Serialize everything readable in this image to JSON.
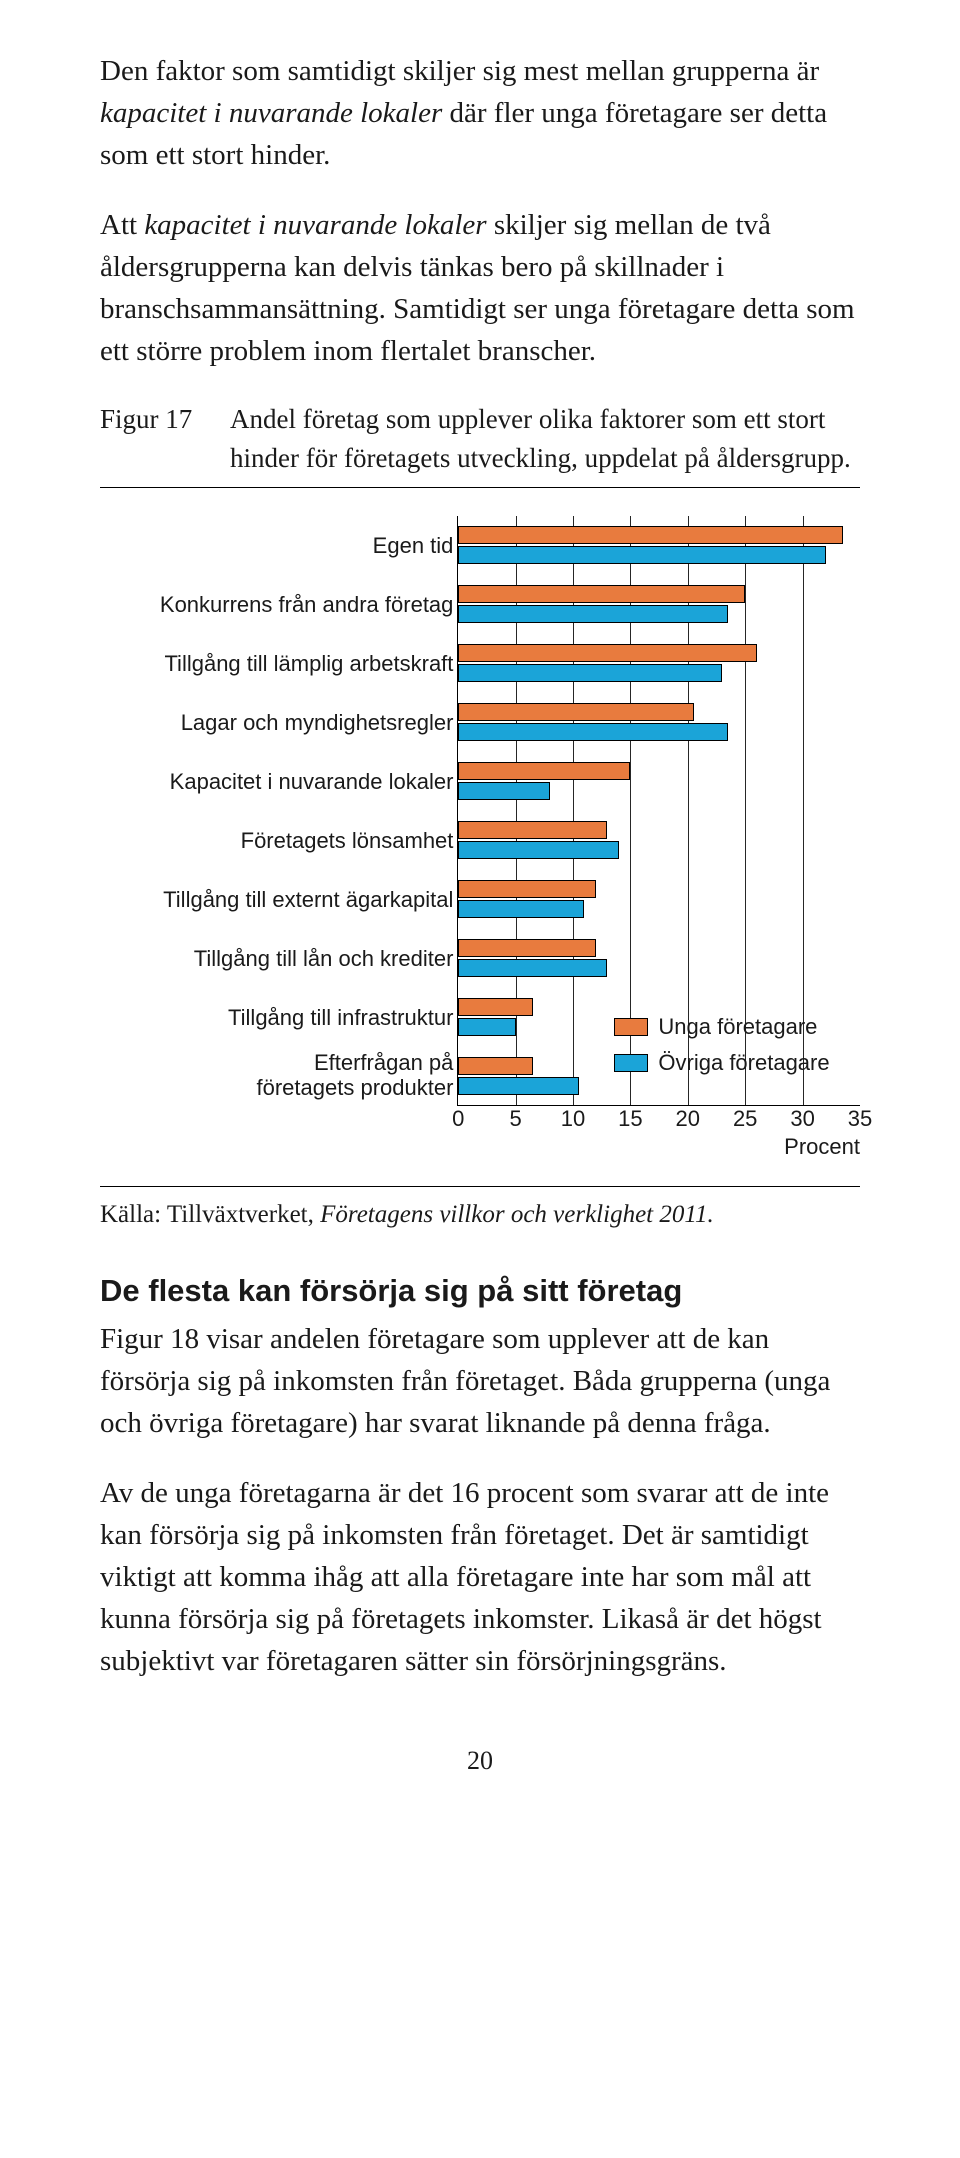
{
  "p1_a": "Den faktor som samtidigt skiljer sig mest mellan grupperna är ",
  "p1_b": "kapacitet i nuvarande lokaler",
  "p1_c": " där fler unga företagare ser detta som ett stort hinder.",
  "p2_a": "Att ",
  "p2_b": "kapacitet i nuvarande lokaler",
  "p2_c": " skiljer sig mellan de två åldersgrupperna kan delvis tänkas bero på skillnader i branschsammansättning. Samtidigt ser unga företagare detta som ett större problem inom flertalet branscher.",
  "fig_no": "Figur 17",
  "fig_desc": "Andel företag som upplever olika faktorer som ett stort hinder för företagets utveckling, uppdelat på åldersgrupp.",
  "chart": {
    "type": "grouped-horizontal-bar",
    "xlim": [
      0,
      35
    ],
    "xtick_step": 5,
    "xticks": [
      0,
      5,
      10,
      15,
      20,
      25,
      30,
      35
    ],
    "axis_unit": "Procent",
    "background_color": "#ffffff",
    "grid_color": "#000000",
    "bar_border": "#000000",
    "label_fontsize": 22,
    "categories": [
      {
        "label": "Egen tid",
        "unga": 33.5,
        "ovriga": 32.0
      },
      {
        "label": "Konkurrens från andra företag",
        "unga": 25.0,
        "ovriga": 23.5
      },
      {
        "label": "Tillgång till lämplig arbetskraft",
        "unga": 26.0,
        "ovriga": 23.0
      },
      {
        "label": "Lagar och myndighetsregler",
        "unga": 20.5,
        "ovriga": 23.5
      },
      {
        "label": "Kapacitet i nuvarande lokaler",
        "unga": 15.0,
        "ovriga": 8.0
      },
      {
        "label": "Företagets lönsamhet",
        "unga": 13.0,
        "ovriga": 14.0
      },
      {
        "label": "Tillgång till externt ägarkapital",
        "unga": 12.0,
        "ovriga": 11.0
      },
      {
        "label": "Tillgång till lån och krediter",
        "unga": 12.0,
        "ovriga": 13.0
      },
      {
        "label": "Tillgång till infrastruktur",
        "unga": 6.5,
        "ovriga": 5.0
      },
      {
        "label": "Efterfrågan på företagets produkter",
        "unga": 6.5,
        "ovriga": 10.5,
        "twoline": true
      }
    ],
    "series": [
      {
        "key": "unga",
        "label": "Unga företagare",
        "color": "#e87b3e"
      },
      {
        "key": "ovriga",
        "label": "Övriga företagare",
        "color": "#1ba4d8"
      }
    ]
  },
  "source_a": "Källa: Tillväxtverket, ",
  "source_b": "Företagens villkor och verklighet 2011.",
  "h2": "De flesta kan försörja sig på sitt företag",
  "p3": "Figur 18 visar andelen företagare som upplever att de kan försörja sig på inkomsten från företaget. Båda grupperna (unga och övriga företagare) har svarat liknande på denna fråga.",
  "p4": "Av de unga företagarna är det 16 procent som svarar att de inte kan försörja sig på inkomsten från företaget. Det är samtidigt viktigt att komma ihåg att alla företagare inte har som mål att kunna försörja sig på företagets inkomster. Likaså är det högst subjektivt var företagaren sätter sin försörjnings­gräns.",
  "pagenum": "20"
}
